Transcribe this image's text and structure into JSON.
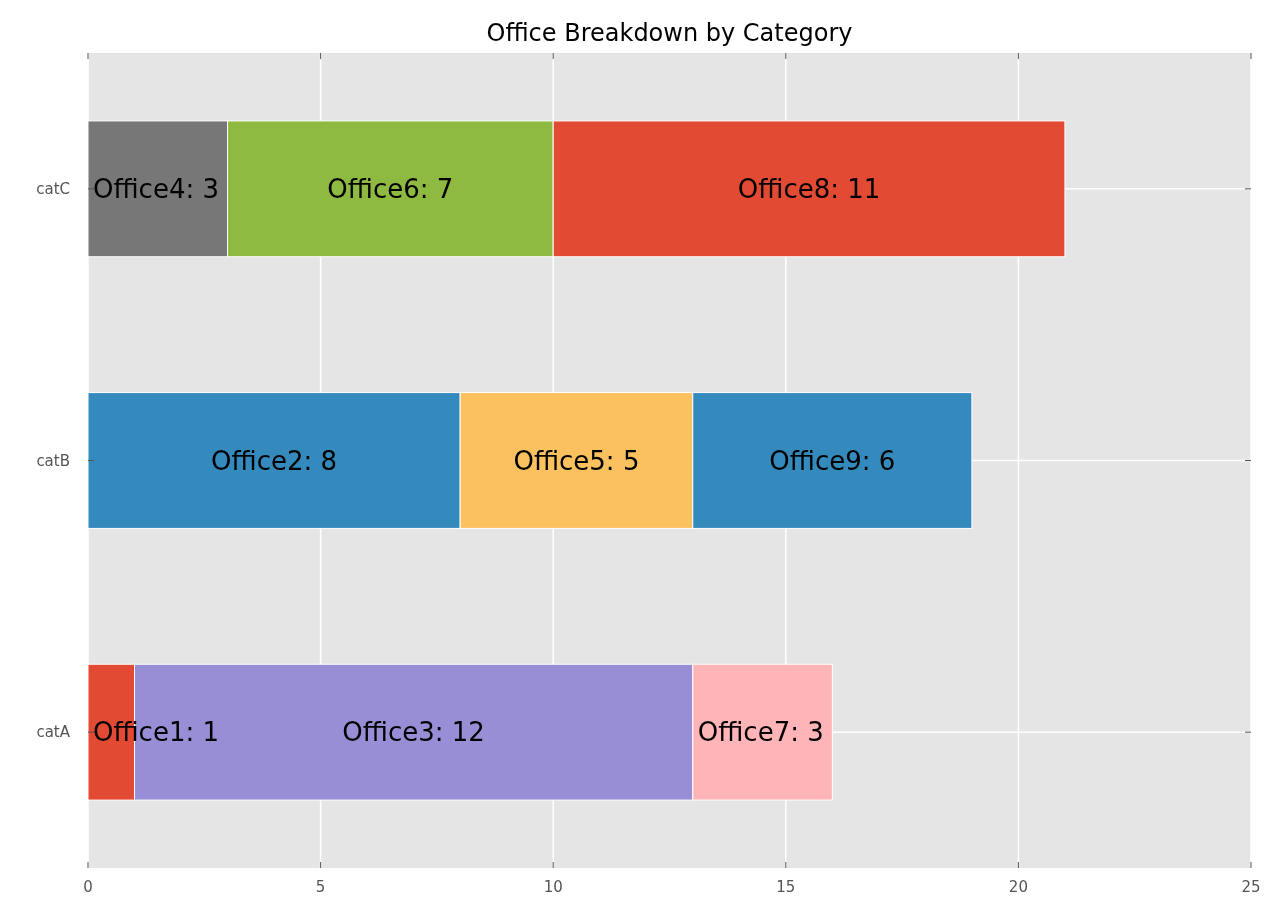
{
  "chart_data": {
    "type": "bar",
    "title": "Office Breakdown by Category",
    "orientation": "horizontal",
    "stacked": true,
    "categories": [
      "catC",
      "catB",
      "catA"
    ],
    "series": [
      {
        "colors": [
          "#777777",
          "#348abd",
          "#e24a33"
        ],
        "values": [
          3,
          8,
          1
        ],
        "value_labels": [
          "Office4: 3",
          "Office2: 8",
          "Office1: 1"
        ]
      },
      {
        "colors": [
          "#8eba42",
          "#fbc15e",
          "#988ed5"
        ],
        "values": [
          7,
          5,
          12
        ],
        "value_labels": [
          "Office6: 7",
          "Office5: 5",
          "Office3: 12"
        ]
      },
      {
        "colors": [
          "#e24a33",
          "#348abd",
          "#ffb5b8"
        ],
        "values": [
          11,
          6,
          3
        ],
        "value_labels": [
          "Office8: 11",
          "Office9: 6",
          "Office7: 3"
        ]
      }
    ],
    "xlim": [
      0,
      25
    ],
    "xticks": [
      0,
      5,
      10,
      15,
      20,
      25
    ],
    "grid": true
  }
}
